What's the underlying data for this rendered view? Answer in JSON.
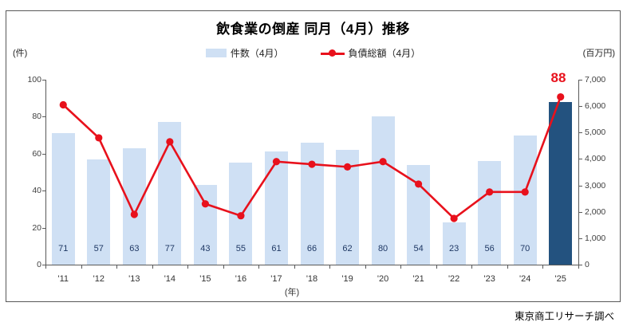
{
  "page": {
    "footer": "東京商工リサーチ調べ"
  },
  "chart_data": {
    "type": "bar+line",
    "title": "飲食業の倒産 同月（4月）推移",
    "categories": [
      "'11",
      "'12",
      "'13",
      "'14",
      "'15",
      "'16",
      "'17",
      "'18",
      "'19",
      "'20",
      "'21",
      "'22",
      "'23",
      "'24",
      "'25"
    ],
    "x_axis_unit": "(年)",
    "series": [
      {
        "name": "件数（4月）",
        "type": "bar",
        "axis": "left",
        "values": [
          71,
          57,
          63,
          77,
          43,
          55,
          61,
          66,
          62,
          80,
          54,
          23,
          56,
          70,
          88
        ]
      },
      {
        "name": "負債総額（4月）",
        "type": "line",
        "axis": "right",
        "values": [
          6050,
          4800,
          1900,
          4650,
          2300,
          1850,
          3900,
          3800,
          3700,
          3900,
          3050,
          1750,
          2750,
          2750,
          6350
        ]
      }
    ],
    "left_axis": {
      "unit": "(件)",
      "min": 0,
      "max": 100,
      "step": 20,
      "tick_labels": [
        "0",
        "20",
        "40",
        "60",
        "80",
        "100"
      ]
    },
    "right_axis": {
      "unit": "(百万円)",
      "min": 0,
      "max": 7000,
      "step": 1000,
      "tick_labels": [
        "0",
        "1,000",
        "2,000",
        "3,000",
        "4,000",
        "5,000",
        "6,000",
        "7,000"
      ]
    },
    "highlight": {
      "index": 14,
      "label": "88"
    },
    "legend_position": "top",
    "grid": false,
    "colors": {
      "bar": "#cfe0f4",
      "bar_highlight": "#23527f",
      "line": "#e8111c",
      "bar_label": "#1f3864",
      "axis_text": "#404040",
      "axis_line": "#595959",
      "title": "#000000",
      "highlight_label": "#e8111c"
    }
  }
}
